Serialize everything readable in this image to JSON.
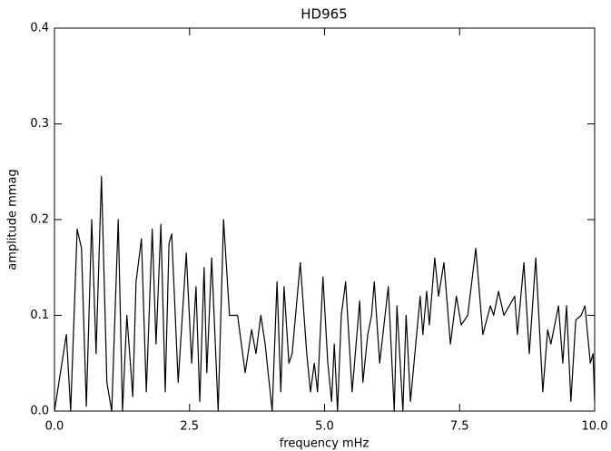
{
  "chart_data": {
    "type": "line",
    "title": "HD965",
    "xlabel": "frequency mHz",
    "ylabel": "amplitude mmag",
    "x": [
      0,
      0.22,
      0.3,
      0.42,
      0.5,
      0.59,
      0.69,
      0.77,
      0.87,
      0.97,
      1.06,
      1.18,
      1.26,
      1.34,
      1.45,
      1.51,
      1.61,
      1.7,
      1.81,
      1.88,
      1.97,
      2.05,
      2.12,
      2.17,
      2.29,
      2.44,
      2.54,
      2.62,
      2.69,
      2.77,
      2.82,
      2.91,
      3.03,
      3.13,
      3.24,
      3.39,
      3.53,
      3.65,
      3.73,
      3.82,
      3.9,
      4.03,
      4.12,
      4.19,
      4.25,
      4.34,
      4.4,
      4.55,
      4.67,
      4.74,
      4.81,
      4.87,
      4.97,
      5.06,
      5.13,
      5.18,
      5.24,
      5.31,
      5.39,
      5.51,
      5.65,
      5.71,
      5.8,
      5.87,
      5.92,
      6.02,
      6.08,
      6.18,
      6.29,
      6.34,
      6.45,
      6.51,
      6.59,
      6.77,
      6.82,
      6.89,
      6.94,
      7.04,
      7.11,
      7.21,
      7.33,
      7.44,
      7.53,
      7.65,
      7.8,
      7.93,
      8.07,
      8.13,
      8.22,
      8.32,
      8.52,
      8.57,
      8.69,
      8.79,
      8.91,
      9.04,
      9.13,
      9.19,
      9.33,
      9.41,
      9.48,
      9.56,
      9.65,
      9.75,
      9.82,
      9.92,
      9.97,
      10.0
    ],
    "series": [
      {
        "name": "amplitude",
        "color": "#000000",
        "values": [
          0,
          0.08,
          0,
          0.19,
          0.17,
          0.005,
          0.2,
          0.06,
          0.245,
          0.03,
          0,
          0.2,
          0,
          0.1,
          0.015,
          0.135,
          0.18,
          0.02,
          0.19,
          0.07,
          0.195,
          0.02,
          0.175,
          0.185,
          0.03,
          0.165,
          0.05,
          0.13,
          0.01,
          0.15,
          0.04,
          0.16,
          0,
          0.2,
          0.1,
          0.1,
          0.04,
          0.085,
          0.06,
          0.1,
          0.07,
          0,
          0.135,
          0.02,
          0.13,
          0.05,
          0.06,
          0.155,
          0.06,
          0.02,
          0.05,
          0.02,
          0.14,
          0.05,
          0.01,
          0.07,
          0,
          0.1,
          0.135,
          0.02,
          0.115,
          0.03,
          0.08,
          0.1,
          0.135,
          0.05,
          0.08,
          0.13,
          0,
          0.11,
          0,
          0.1,
          0.01,
          0.12,
          0.08,
          0.125,
          0.09,
          0.16,
          0.12,
          0.155,
          0.07,
          0.12,
          0.09,
          0.1,
          0.17,
          0.08,
          0.11,
          0.1,
          0.125,
          0.1,
          0.12,
          0.08,
          0.155,
          0.06,
          0.16,
          0.02,
          0.085,
          0.07,
          0.11,
          0.05,
          0.11,
          0.01,
          0.095,
          0.1,
          0.11,
          0.05,
          0.06,
          0.01
        ]
      }
    ],
    "xlim": [
      0,
      10
    ],
    "ylim": [
      0,
      0.4
    ],
    "xticks": [
      {
        "value": 0,
        "label": "0.0"
      },
      2.5,
      {
        "value": 5,
        "label": "5.0"
      },
      7.5,
      {
        "value": 10,
        "label": "10.0"
      }
    ],
    "yticks": [
      {
        "value": 0,
        "label": "0.0"
      },
      0.1,
      0.2,
      0.3,
      0.4
    ]
  }
}
